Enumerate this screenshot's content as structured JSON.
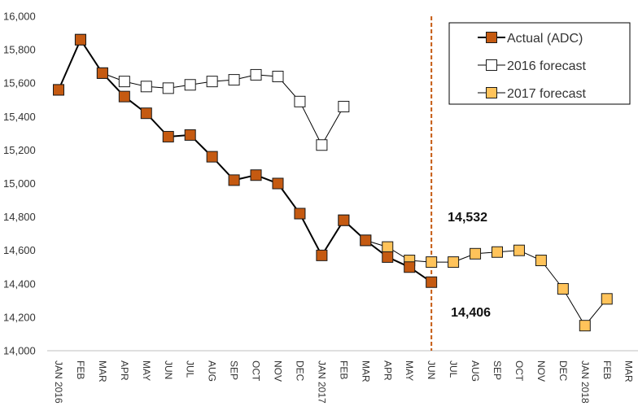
{
  "chart_data": {
    "type": "line",
    "title": "",
    "xlabel": "",
    "ylabel": "",
    "ylim": [
      14000,
      16000
    ],
    "yticks": [
      "14,000",
      "14,200",
      "14,400",
      "14,600",
      "14,800",
      "15,000",
      "15,200",
      "15,400",
      "15,600",
      "15,800",
      "16,000"
    ],
    "x_labels": [
      "JAN 2016",
      "FEB",
      "MAR",
      "APR",
      "MAY",
      "JUN",
      "JUL",
      "AUG",
      "SEP",
      "OCT",
      "NOV",
      "DEC",
      "JAN 2017",
      "FEB",
      "MAR",
      "APR",
      "MAY",
      "JUN",
      "JUL",
      "AUG",
      "SEP",
      "OCT",
      "NOV",
      "DEC",
      "JAN 2018",
      "FEB",
      "MAR"
    ],
    "grid": false,
    "legend_position": "top-right",
    "series": [
      {
        "name": "Actual (ADC)",
        "color": "#C55A11",
        "marker_fill": "#C55A11",
        "line_color": "#000000",
        "line_width": 2,
        "start_index": 0,
        "values": [
          15560,
          15860,
          15660,
          15520,
          15420,
          15280,
          15290,
          15160,
          15020,
          15050,
          15000,
          14820,
          14570,
          14780,
          14660,
          14560,
          14500,
          14410
        ]
      },
      {
        "name": "2016 forecast",
        "color": "#ffffff",
        "marker_fill": "#ffffff",
        "line_color": "#000000",
        "line_width": 1,
        "start_index": 0,
        "values": [
          15560,
          15860,
          15660,
          15610,
          15580,
          15570,
          15590,
          15610,
          15620,
          15650,
          15640,
          15490,
          15230,
          15460
        ]
      },
      {
        "name": "2017 forecast",
        "color": "#FFC35A",
        "marker_fill": "#FFC35A",
        "line_color": "#000000",
        "line_width": 1,
        "start_index": 13,
        "values": [
          14780,
          14660,
          14620,
          14540,
          14530,
          14530,
          14580,
          14590,
          14600,
          14540,
          14370,
          14150,
          14310
        ]
      }
    ],
    "annotations": [
      {
        "text": "14,532",
        "near_index": 17
      },
      {
        "text": "14,406",
        "near_index": 17
      }
    ],
    "vertical_line": {
      "index": 17,
      "color": "#C55A11",
      "style": "dashed"
    }
  }
}
